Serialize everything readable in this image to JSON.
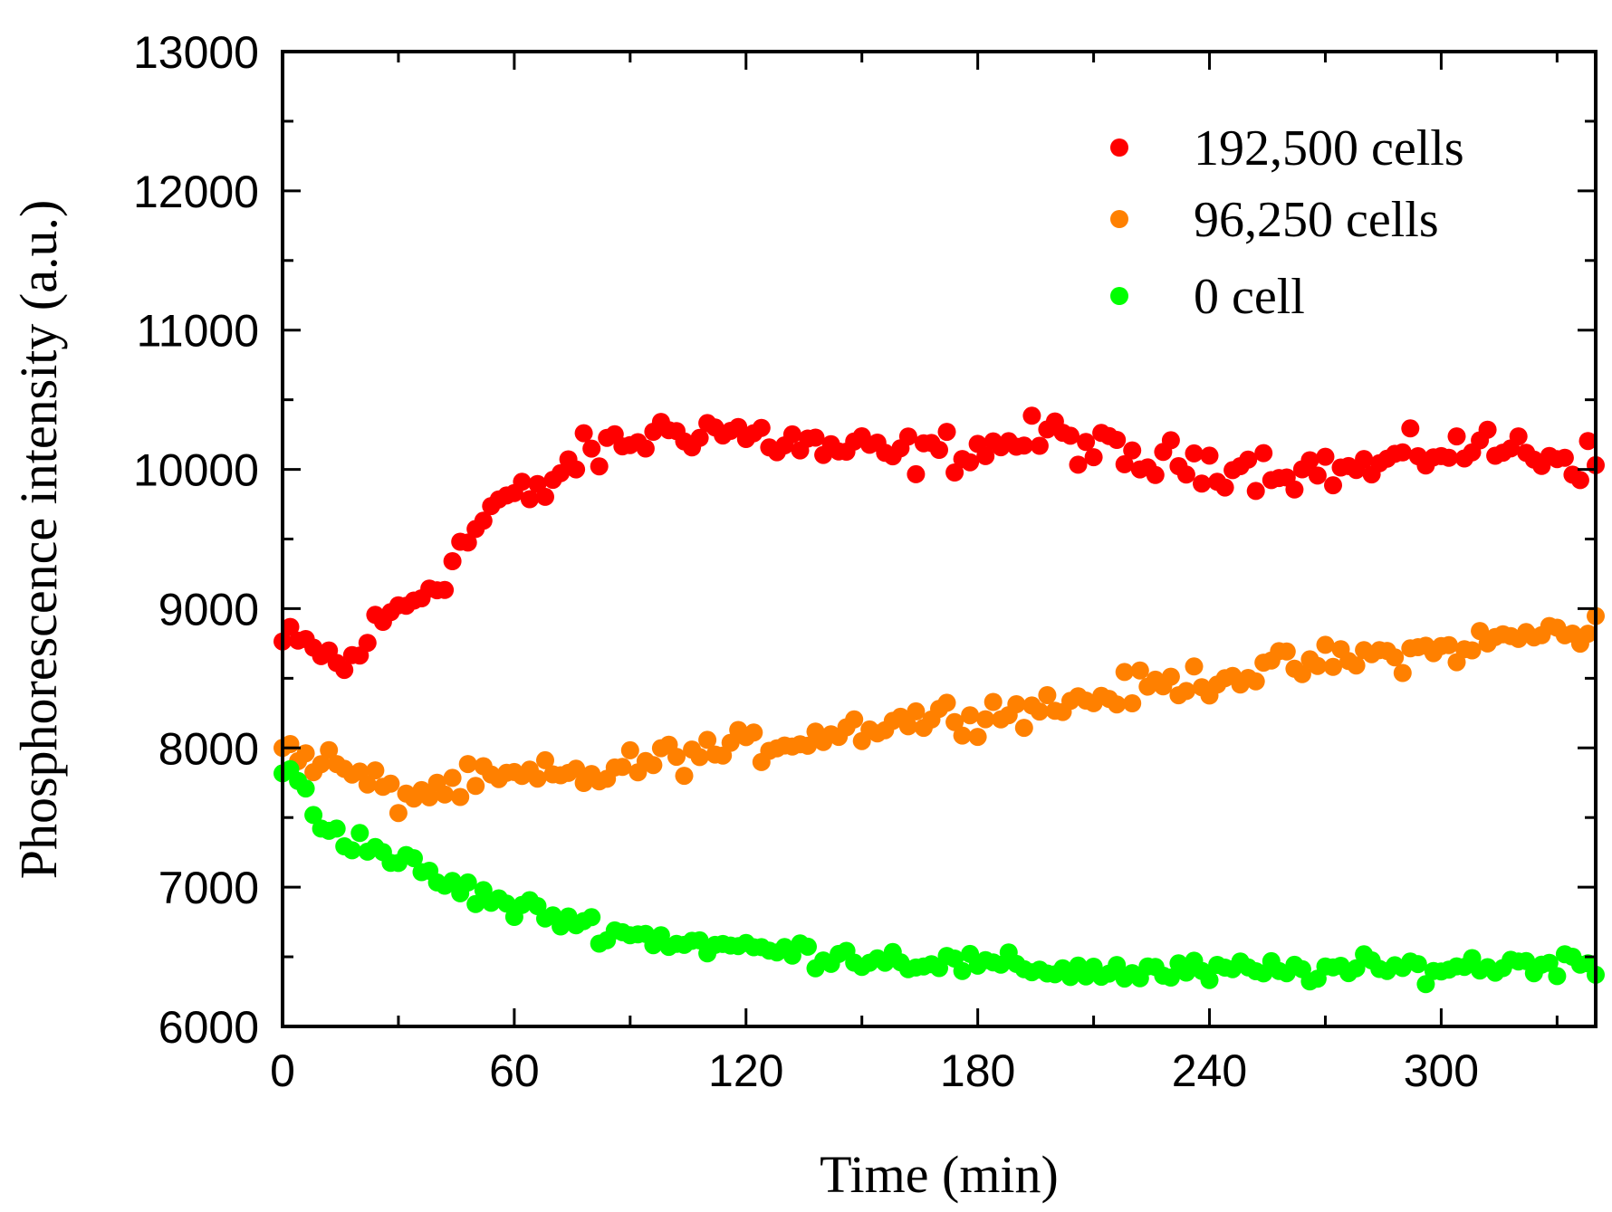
{
  "chart_data": {
    "type": "scatter",
    "xlabel": "Time (min)",
    "ylabel": "Phosphorescence intensity (a.u.)",
    "xlim": [
      0,
      340
    ],
    "ylim": [
      6000,
      13000
    ],
    "xticks": [
      0,
      60,
      120,
      180,
      240,
      300
    ],
    "yticks": [
      6000,
      7000,
      8000,
      9000,
      10000,
      11000,
      12000,
      13000
    ],
    "x_tick_labels": [
      "0",
      "60",
      "120",
      "180",
      "240",
      "300"
    ],
    "y_tick_labels": [
      "6000",
      "7000",
      "8000",
      "9000",
      "10000",
      "11000",
      "12000",
      "13000"
    ],
    "legend_position": "top-right",
    "x_step": 2,
    "series": [
      {
        "name": "192,500 cells",
        "color": "#ff0000",
        "anchors": [
          [
            0,
            8750
          ],
          [
            10,
            8700
          ],
          [
            16,
            8550
          ],
          [
            22,
            8800
          ],
          [
            30,
            9000
          ],
          [
            40,
            9200
          ],
          [
            48,
            9500
          ],
          [
            56,
            9780
          ],
          [
            66,
            9800
          ],
          [
            74,
            10050
          ],
          [
            84,
            10150
          ],
          [
            96,
            10250
          ],
          [
            108,
            10300
          ],
          [
            120,
            10250
          ],
          [
            140,
            10150
          ],
          [
            160,
            10100
          ],
          [
            180,
            10150
          ],
          [
            200,
            10250
          ],
          [
            220,
            10050
          ],
          [
            240,
            10050
          ],
          [
            260,
            10000
          ],
          [
            280,
            10000
          ],
          [
            300,
            10150
          ],
          [
            320,
            10150
          ],
          [
            340,
            10050
          ]
        ],
        "noise": 95
      },
      {
        "name": "96,250 cells",
        "color": "#ff8000",
        "anchors": [
          [
            0,
            7980
          ],
          [
            12,
            7900
          ],
          [
            20,
            7780
          ],
          [
            30,
            7650
          ],
          [
            40,
            7700
          ],
          [
            50,
            7750
          ],
          [
            60,
            7780
          ],
          [
            80,
            7800
          ],
          [
            100,
            7930
          ],
          [
            120,
            8000
          ],
          [
            140,
            8100
          ],
          [
            160,
            8200
          ],
          [
            180,
            8250
          ],
          [
            200,
            8300
          ],
          [
            220,
            8420
          ],
          [
            240,
            8500
          ],
          [
            260,
            8580
          ],
          [
            280,
            8650
          ],
          [
            300,
            8700
          ],
          [
            320,
            8800
          ],
          [
            340,
            8850
          ]
        ],
        "noise": 75
      },
      {
        "name": "0 cell",
        "color": "#00ff00",
        "anchors": [
          [
            0,
            7820
          ],
          [
            4,
            7780
          ],
          [
            10,
            7450
          ],
          [
            20,
            7320
          ],
          [
            30,
            7200
          ],
          [
            40,
            7050
          ],
          [
            50,
            6950
          ],
          [
            60,
            6850
          ],
          [
            70,
            6800
          ],
          [
            80,
            6720
          ],
          [
            90,
            6660
          ],
          [
            100,
            6620
          ],
          [
            120,
            6560
          ],
          [
            140,
            6520
          ],
          [
            160,
            6480
          ],
          [
            180,
            6440
          ],
          [
            200,
            6410
          ],
          [
            220,
            6390
          ],
          [
            240,
            6390
          ],
          [
            260,
            6400
          ],
          [
            280,
            6410
          ],
          [
            300,
            6420
          ],
          [
            320,
            6450
          ],
          [
            340,
            6460
          ]
        ],
        "noise": 55
      }
    ]
  }
}
